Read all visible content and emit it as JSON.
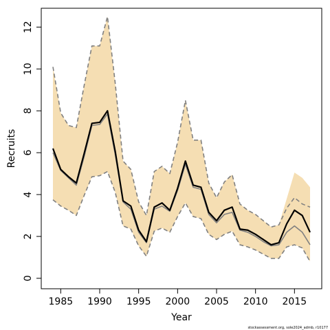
{
  "chart_data": {
    "type": "line",
    "title": "",
    "xlabel": "Year",
    "ylabel": "Recruits",
    "xlim": [
      1982.5,
      2018.5
    ],
    "ylim": [
      -0.5,
      12.9
    ],
    "x_ticks": [
      1985,
      1990,
      1995,
      2000,
      2005,
      2010,
      2015
    ],
    "y_ticks": [
      0,
      2,
      4,
      6,
      8,
      10,
      12
    ],
    "x": [
      1984,
      1985,
      1986,
      1987,
      1988,
      1989,
      1990,
      1991,
      1992,
      1993,
      1994,
      1995,
      1996,
      1997,
      1998,
      1999,
      2000,
      2001,
      2002,
      2003,
      2004,
      2005,
      2006,
      2007,
      2008,
      2009,
      2010,
      2011,
      2012,
      2013,
      2014,
      2015,
      2016,
      2017
    ],
    "series": [
      {
        "values": [
          6.2,
          5.2,
          4.85,
          4.55,
          5.95,
          7.4,
          7.45,
          8.0,
          6.05,
          3.7,
          3.45,
          2.3,
          1.75,
          3.4,
          3.6,
          3.25,
          4.3,
          5.6,
          4.45,
          4.35,
          3.15,
          2.75,
          3.25,
          3.4,
          2.35,
          2.3,
          2.1,
          1.85,
          1.6,
          1.7,
          2.6,
          3.25,
          3.0,
          2.2
        ]
      },
      {
        "values": [
          6.0,
          5.15,
          4.8,
          4.45,
          5.8,
          7.3,
          7.35,
          7.85,
          5.9,
          3.65,
          3.3,
          2.2,
          1.7,
          3.3,
          3.45,
          3.2,
          4.2,
          5.45,
          4.35,
          4.25,
          3.05,
          2.65,
          3.05,
          3.15,
          2.3,
          2.2,
          2.0,
          1.75,
          1.55,
          1.6,
          2.2,
          2.5,
          2.2,
          1.6
        ]
      },
      {
        "values": [
          10.1,
          7.9,
          7.3,
          7.2,
          9.2,
          11.1,
          11.1,
          12.5,
          9.3,
          5.6,
          5.2,
          3.65,
          3.0,
          5.1,
          5.35,
          5.0,
          6.5,
          8.5,
          6.6,
          6.6,
          4.55,
          3.85,
          4.6,
          4.95,
          3.55,
          3.25,
          3.05,
          2.75,
          2.45,
          2.55,
          3.35,
          3.85,
          3.55,
          3.4
        ]
      },
      {
        "values": [
          3.75,
          3.45,
          3.25,
          3.0,
          3.95,
          4.85,
          4.9,
          5.1,
          4.1,
          2.5,
          2.35,
          1.55,
          1.05,
          2.25,
          2.4,
          2.2,
          2.95,
          3.6,
          2.95,
          2.85,
          2.1,
          1.85,
          2.1,
          2.25,
          1.6,
          1.5,
          1.35,
          1.15,
          0.95,
          0.95,
          1.5,
          1.6,
          1.45,
          0.8
        ]
      }
    ],
    "band": {
      "upper": [
        10.1,
        7.9,
        7.3,
        7.2,
        9.2,
        11.1,
        11.1,
        12.5,
        9.3,
        5.6,
        5.2,
        3.65,
        3.0,
        5.1,
        5.35,
        5.0,
        6.5,
        8.5,
        6.6,
        6.6,
        4.55,
        3.85,
        4.6,
        4.95,
        3.55,
        3.25,
        3.05,
        2.75,
        2.45,
        2.55,
        3.8,
        5.05,
        4.8,
        4.35
      ],
      "lower": [
        3.75,
        3.45,
        3.25,
        3.0,
        3.95,
        4.85,
        4.9,
        5.1,
        4.1,
        2.5,
        2.35,
        1.55,
        1.05,
        2.25,
        2.4,
        2.2,
        2.95,
        3.6,
        2.95,
        2.85,
        2.1,
        1.85,
        2.1,
        2.25,
        1.6,
        1.5,
        1.35,
        1.15,
        0.95,
        0.95,
        1.5,
        1.6,
        1.45,
        0.8
      ]
    },
    "grid": false,
    "legend": "none"
  },
  "footnote": "stockassessment.org, sole2024_admb, r10177",
  "colors": {
    "band_fill": "#f5deb3",
    "estimate_line": "#000000",
    "alt_estimate_line": "#808080",
    "ci_dashed_line": "#808080",
    "axis": "#000000",
    "background": "#ffffff"
  }
}
